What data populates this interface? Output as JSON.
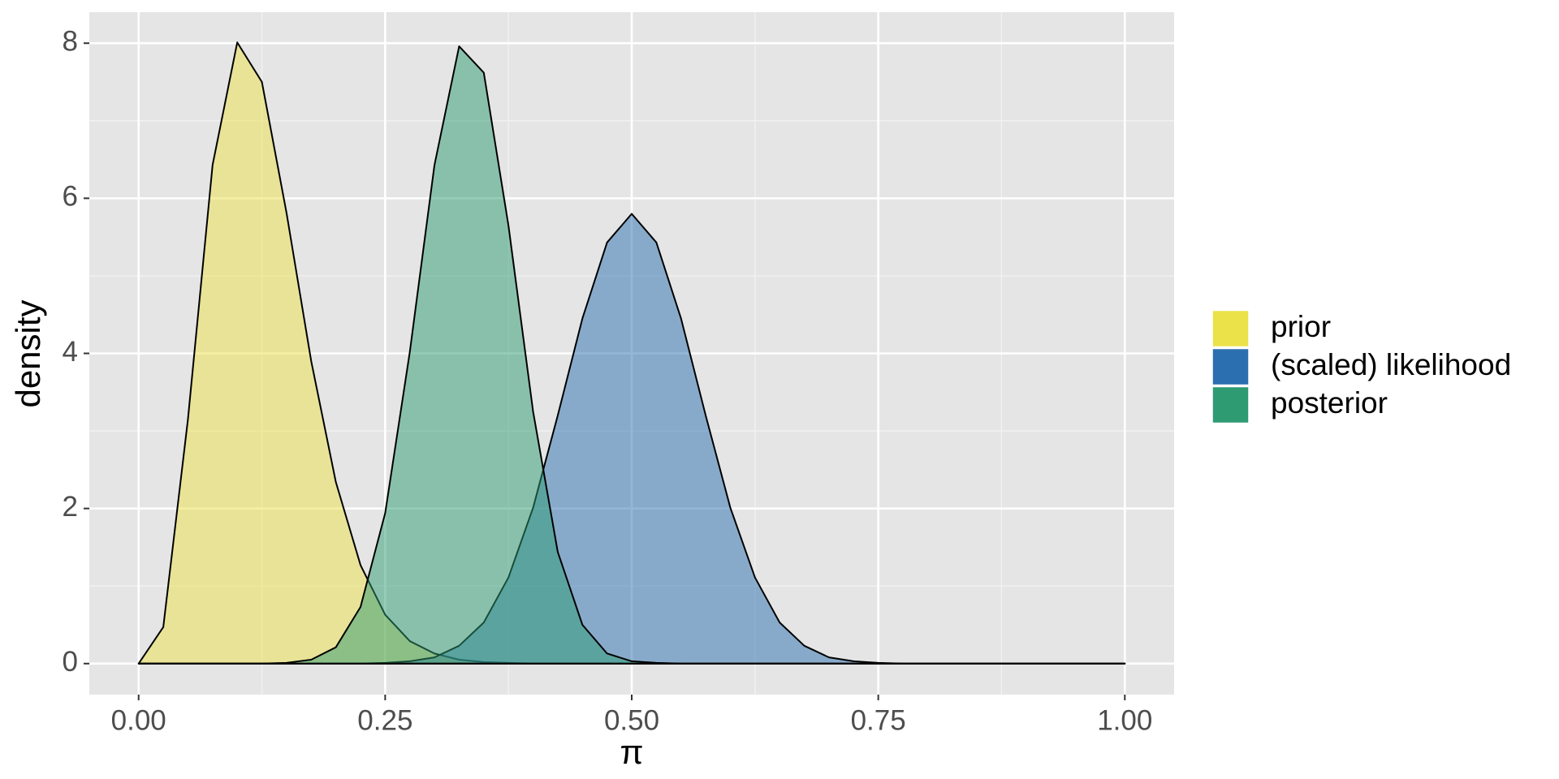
{
  "chart_data": {
    "type": "area",
    "xlabel": "π",
    "ylabel": "density",
    "x": [
      0,
      0.025,
      0.05,
      0.075,
      0.1,
      0.125,
      0.15,
      0.175,
      0.2,
      0.225,
      0.25,
      0.275,
      0.3,
      0.325,
      0.35,
      0.375,
      0.4,
      0.425,
      0.45,
      0.475,
      0.5,
      0.525,
      0.55,
      0.575,
      0.6,
      0.625,
      0.65,
      0.675,
      0.7,
      0.725,
      0.75,
      0.775,
      0.8,
      0.825,
      0.85,
      0.875,
      0.9,
      0.925,
      0.95,
      0.975,
      1
    ],
    "series": [
      {
        "name": "prior",
        "color": "#ebe24a",
        "values": [
          0,
          0.47,
          3.15,
          6.43,
          8.01,
          7.5,
          5.81,
          3.9,
          2.34,
          1.27,
          0.63,
          0.29,
          0.13,
          0.05,
          0.02,
          0.01,
          0,
          0,
          0,
          0,
          0,
          0,
          0,
          0,
          0,
          0,
          0,
          0,
          0,
          0,
          0,
          0,
          0,
          0,
          0,
          0,
          0,
          0,
          0,
          0,
          0
        ]
      },
      {
        "name": "(scaled) likelihood",
        "color": "#2c6fb0",
        "values": [
          0,
          0,
          0,
          0,
          0,
          0,
          0,
          0,
          0,
          0,
          0.01,
          0.03,
          0.08,
          0.23,
          0.53,
          1.11,
          2.01,
          3.2,
          4.45,
          5.43,
          5.8,
          5.43,
          4.45,
          3.2,
          2.01,
          1.11,
          0.53,
          0.23,
          0.08,
          0.03,
          0.01,
          0,
          0,
          0,
          0,
          0,
          0,
          0,
          0,
          0,
          0
        ]
      },
      {
        "name": "posterior",
        "color": "#2e9b73",
        "values": [
          0,
          0,
          0,
          0,
          0,
          0,
          0.01,
          0.05,
          0.21,
          0.73,
          1.94,
          4.02,
          6.43,
          7.96,
          7.62,
          5.65,
          3.25,
          1.44,
          0.5,
          0.13,
          0.03,
          0.01,
          0,
          0,
          0,
          0,
          0,
          0,
          0,
          0,
          0,
          0,
          0,
          0,
          0,
          0,
          0,
          0,
          0,
          0,
          0
        ]
      }
    ],
    "xlim": [
      -0.05,
      1.05
    ],
    "xticks": [
      {
        "value": 0,
        "label": "0.00"
      },
      {
        "value": 0.25,
        "label": "0.25"
      },
      {
        "value": 0.5,
        "label": "0.50"
      },
      {
        "value": 0.75,
        "label": "0.75"
      },
      {
        "value": 1,
        "label": "1.00"
      }
    ],
    "x_minor_ticks": [
      0.125,
      0.375,
      0.625,
      0.875
    ],
    "ylim": [
      -0.4,
      8.4
    ],
    "yticks": [
      0,
      2,
      4,
      6,
      8
    ],
    "y_minor_ticks": [
      1,
      3,
      5,
      7
    ],
    "grid": true,
    "legend": "right",
    "fill_opacity": 0.5
  }
}
